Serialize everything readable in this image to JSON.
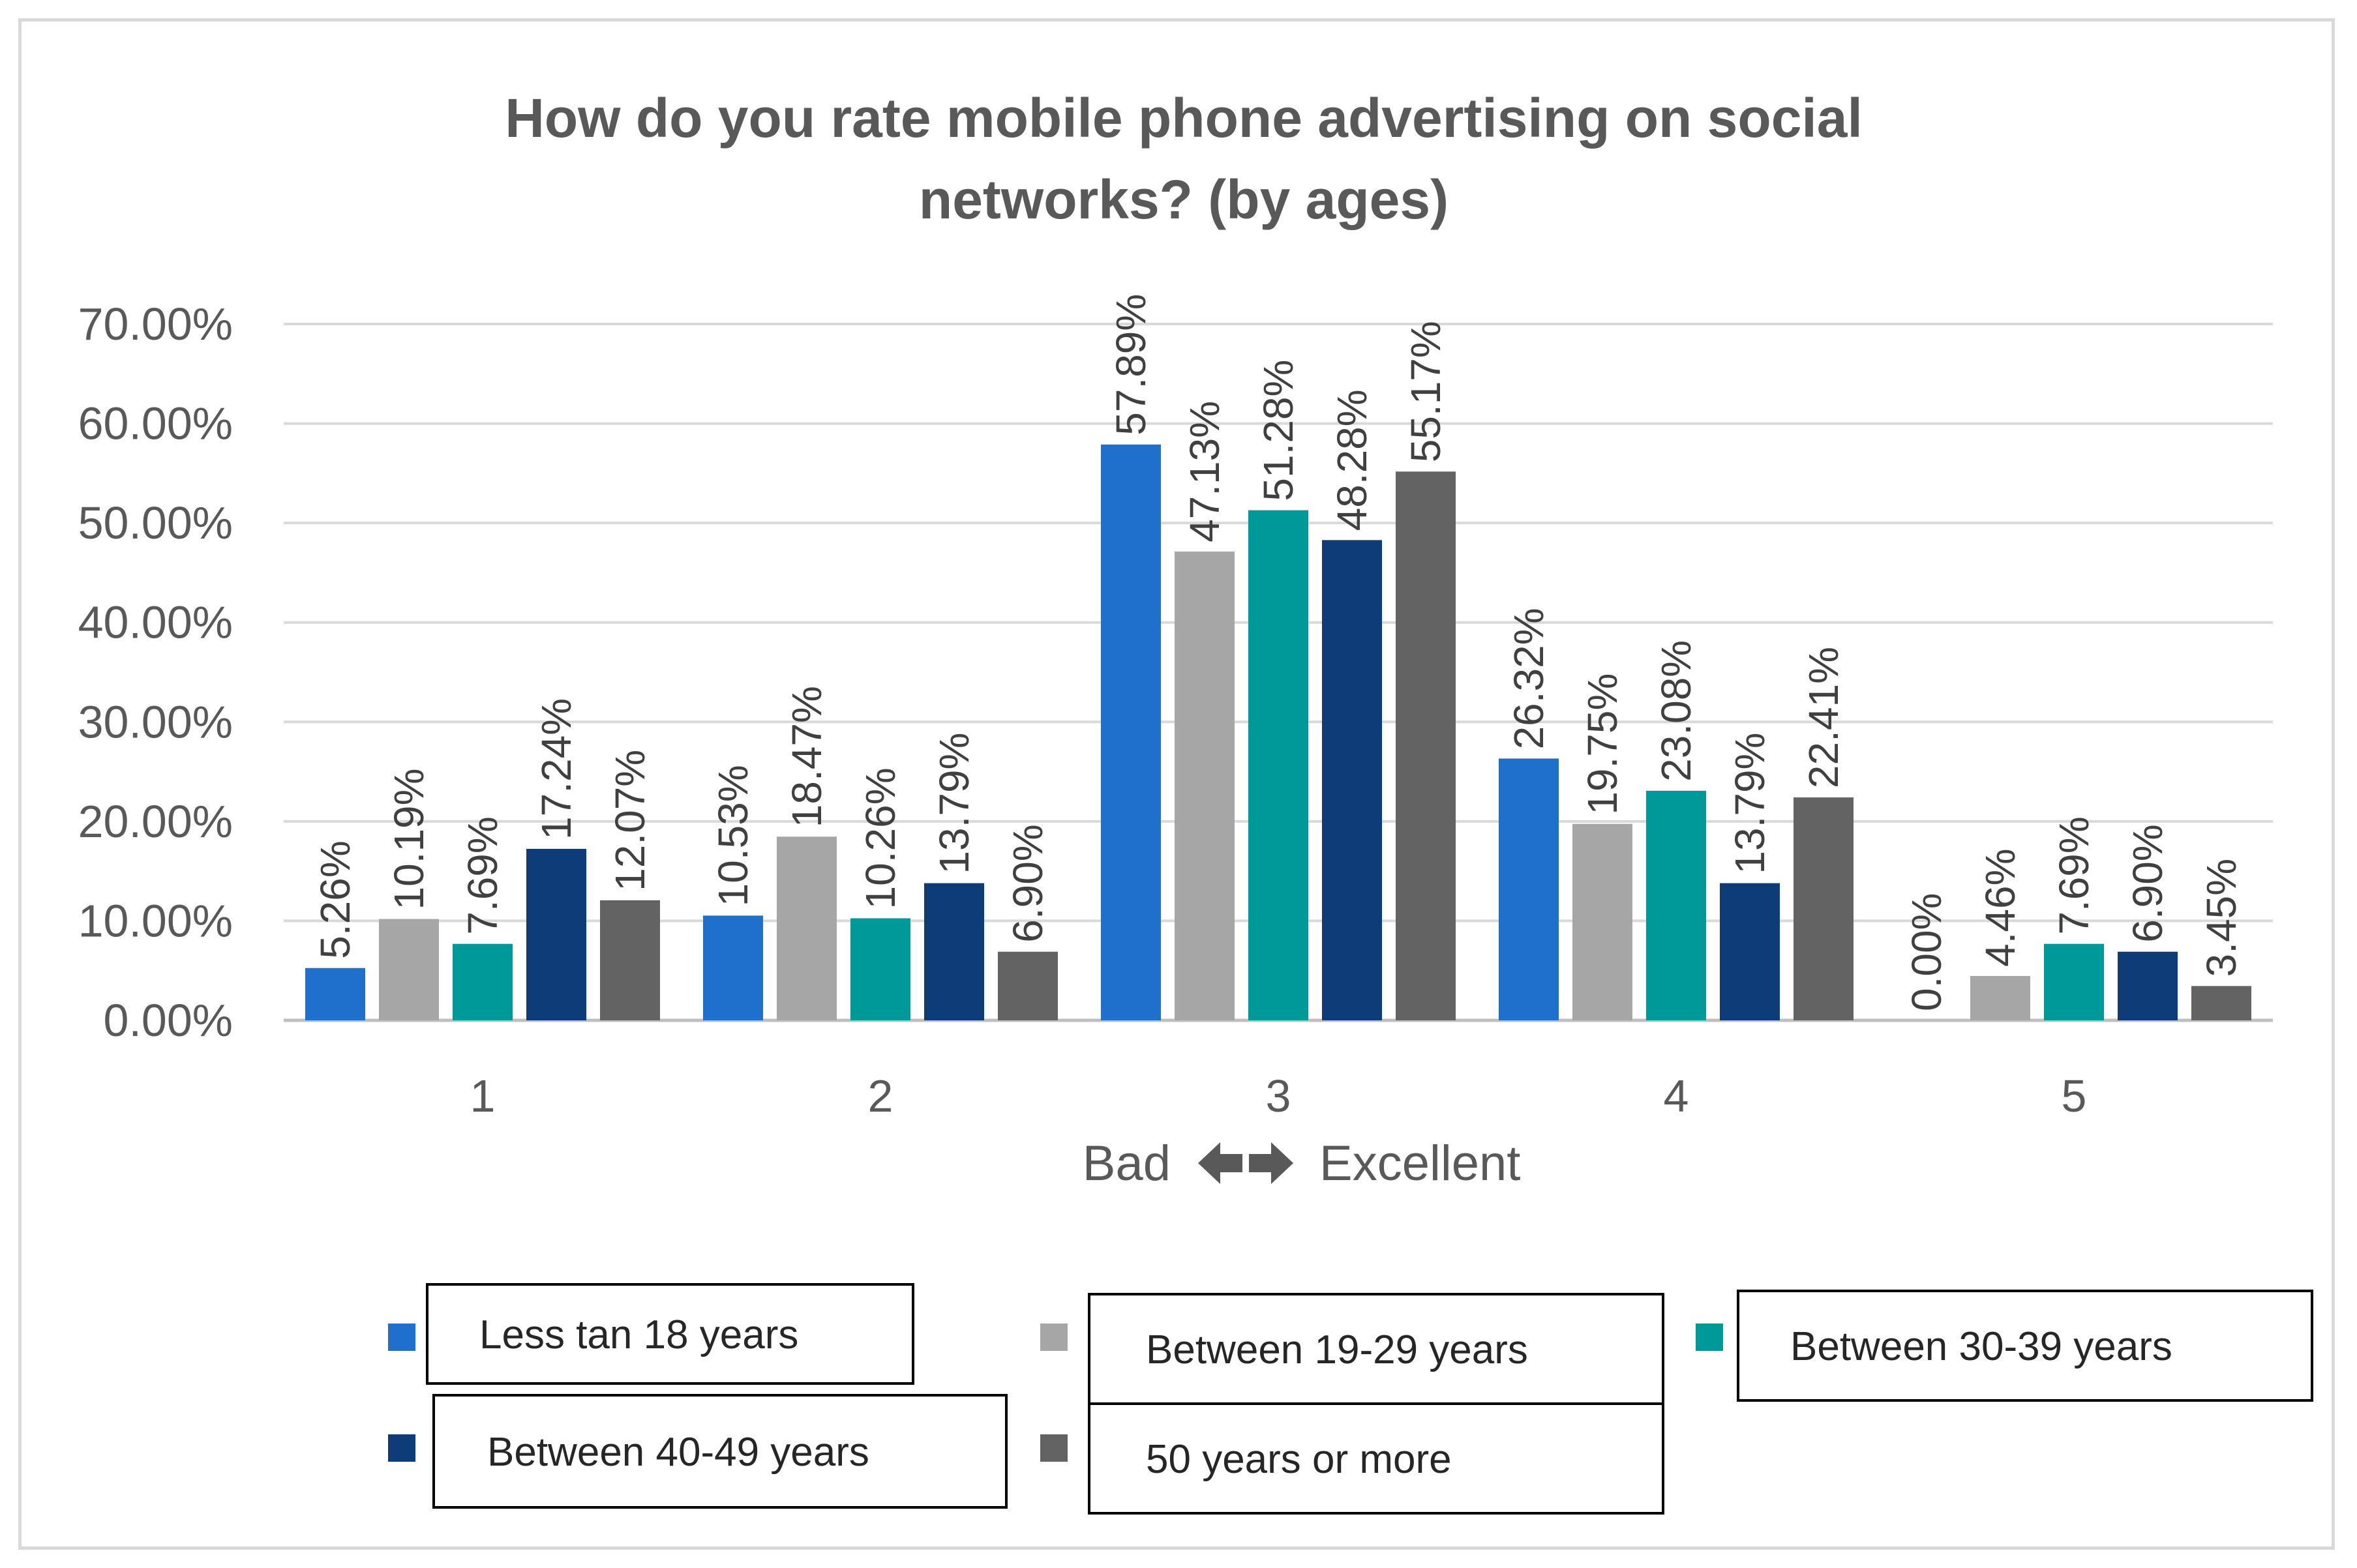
{
  "chart_data": {
    "type": "bar",
    "title": "How do you rate mobile phone advertising on social networks? (by ages)",
    "title_lines": [
      "How do you rate mobile phone advertising on social",
      "networks? (by ages)"
    ],
    "categories": [
      "1",
      "2",
      "3",
      "4",
      "5"
    ],
    "xlabel": {
      "left": "Bad",
      "right": "Excellent"
    },
    "ylabel": "",
    "ylim": [
      0,
      70
    ],
    "yticks": [
      0,
      10,
      20,
      30,
      40,
      50,
      60,
      70
    ],
    "ytick_labels": [
      "0.00%",
      "10.00%",
      "20.00%",
      "30.00%",
      "40.00%",
      "50.00%",
      "60.00%",
      "70.00%"
    ],
    "grid": true,
    "legend_position": "bottom",
    "series": [
      {
        "name": "Less tan 18 years",
        "color": "#1f6fcc",
        "values": [
          5.26,
          10.53,
          57.89,
          26.32,
          0.0
        ],
        "labels": [
          "5.26%",
          "10.53%",
          "57.89%",
          "26.32%",
          "0.00%"
        ]
      },
      {
        "name": "Between 19-29 years",
        "color": "#a6a6a6",
        "values": [
          10.19,
          18.47,
          47.13,
          19.75,
          4.46
        ],
        "labels": [
          "10.19%",
          "18.47%",
          "47.13%",
          "19.75%",
          "4.46%"
        ]
      },
      {
        "name": "Between 30-39 years",
        "color": "#009999",
        "values": [
          7.69,
          10.26,
          51.28,
          23.08,
          7.69
        ],
        "labels": [
          "7.69%",
          "10.26%",
          "51.28%",
          "23.08%",
          "7.69%"
        ]
      },
      {
        "name": "Between 40-49 years",
        "color": "#0e3c78",
        "values": [
          17.24,
          13.79,
          48.28,
          13.79,
          6.9
        ],
        "labels": [
          "17.24%",
          "13.79%",
          "48.28%",
          "13.79%",
          "6.90%"
        ]
      },
      {
        "name": "50 years or more",
        "color": "#636363",
        "values": [
          12.07,
          6.9,
          55.17,
          22.41,
          3.45
        ],
        "labels": [
          "12.07%",
          "6.90%",
          "55.17%",
          "22.41%",
          "3.45%"
        ]
      }
    ]
  }
}
